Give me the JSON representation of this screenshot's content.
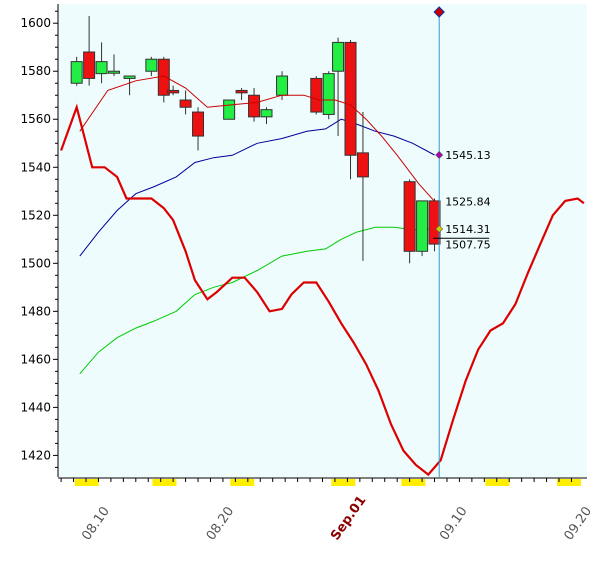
{
  "chart_data": {
    "type": "candlestick",
    "title": "",
    "xlabel": "",
    "ylabel": "",
    "ylim": [
      1411,
      1608
    ],
    "yticks": [
      1420,
      1440,
      1460,
      1480,
      1500,
      1520,
      1540,
      1560,
      1580,
      1600
    ],
    "x_ticks": [
      {
        "label": "08.10",
        "day": 2,
        "month_label": false
      },
      {
        "label": "08.20",
        "day": 10,
        "month_label": false
      },
      {
        "label": "Sep.01",
        "day": 18,
        "month_label": true
      },
      {
        "label": "09.10",
        "day": 25,
        "month_label": false
      },
      {
        "label": "09.20",
        "day": 33,
        "month_label": false
      }
    ],
    "colors": {
      "plot_bg": "#eefcfd",
      "bull": "#22ee44",
      "bear": "#ee1111",
      "oscillator": "#dd0000",
      "ma_short": "#cc0000",
      "ma_mid": "#000099",
      "ma_long": "#00cc00",
      "cursor": "#3399cc",
      "week_marks": "#ffee00"
    },
    "candles": [
      {
        "day": 1,
        "open": 1575,
        "high": 1586,
        "low": 1574,
        "close": 1584
      },
      {
        "day": 1.8,
        "open": 1588,
        "high": 1603,
        "low": 1574,
        "close": 1577
      },
      {
        "day": 2.6,
        "open": 1579,
        "high": 1592,
        "low": 1575,
        "close": 1584
      },
      {
        "day": 3.4,
        "open": 1580,
        "high": 1587,
        "low": 1578,
        "close": 1580
      },
      {
        "day": 4.4,
        "open": 1577,
        "high": 1578,
        "low": 1570,
        "close": 1578
      },
      {
        "day": 5.8,
        "open": 1580,
        "high": 1586,
        "low": 1578,
        "close": 1585
      },
      {
        "day": 6.6,
        "open": 1585,
        "high": 1586,
        "low": 1567,
        "close": 1570
      },
      {
        "day": 7.2,
        "open": 1572,
        "high": 1574,
        "low": 1570,
        "close": 1571
      },
      {
        "day": 8,
        "open": 1568,
        "high": 1572,
        "low": 1562,
        "close": 1565
      },
      {
        "day": 8.8,
        "open": 1563,
        "high": 1565,
        "low": 1547,
        "close": 1553
      },
      {
        "day": 10.8,
        "open": 1560,
        "high": 1568,
        "low": 1560,
        "close": 1568
      },
      {
        "day": 11.6,
        "open": 1572,
        "high": 1573,
        "low": 1568,
        "close": 1571
      },
      {
        "day": 12.4,
        "open": 1570,
        "high": 1573,
        "low": 1559,
        "close": 1561
      },
      {
        "day": 13.2,
        "open": 1561,
        "high": 1565,
        "low": 1558,
        "close": 1564
      },
      {
        "day": 14.2,
        "open": 1570,
        "high": 1580,
        "low": 1568,
        "close": 1578
      },
      {
        "day": 16.4,
        "open": 1577,
        "high": 1578,
        "low": 1562,
        "close": 1563
      },
      {
        "day": 17.2,
        "open": 1562,
        "high": 1580,
        "low": 1560,
        "close": 1579
      },
      {
        "day": 17.8,
        "open": 1580,
        "high": 1594,
        "low": 1553,
        "close": 1592
      },
      {
        "day": 18.6,
        "open": 1592,
        "high": 1593,
        "low": 1535,
        "close": 1545
      },
      {
        "day": 19.4,
        "open": 1546,
        "high": 1563,
        "low": 1501,
        "close": 1536
      },
      {
        "day": 22.4,
        "open": 1534,
        "high": 1535,
        "low": 1500,
        "close": 1505
      },
      {
        "day": 23.2,
        "open": 1505,
        "high": 1526,
        "low": 1503,
        "close": 1526
      },
      {
        "day": 24.0,
        "open": 1526,
        "high": 1527,
        "low": 1505,
        "close": 1508
      }
    ],
    "oscillator": {
      "x": [
        0,
        1,
        2,
        2.8,
        3.6,
        4.2,
        5,
        5.8,
        6.6,
        7.2,
        8,
        8.6,
        9.4,
        10,
        11,
        11.8,
        12.6,
        13.4,
        14.2,
        14.8,
        15.6,
        16.4,
        17.2,
        18,
        18.8,
        19.6,
        20.4,
        21.2,
        22,
        22.8,
        23.6,
        24.4,
        25.2,
        26,
        26.8,
        27.6,
        28.4,
        29.2,
        30,
        30.8,
        31.6,
        32.4,
        33.2,
        33.6
      ],
      "y": [
        1547,
        1565,
        1540,
        1540,
        1536,
        1527,
        1527,
        1527,
        1523,
        1518,
        1505,
        1493,
        1485,
        1488,
        1494,
        1494,
        1488,
        1480,
        1481,
        1487,
        1492,
        1492,
        1484,
        1475,
        1467,
        1458,
        1447,
        1433,
        1422,
        1416,
        1412,
        1418,
        1435,
        1451,
        1464,
        1472,
        1475,
        1483,
        1496,
        1508,
        1520,
        1526,
        1527,
        1525
      ]
    },
    "ma_short": {
      "x": [
        1.2,
        3,
        4.8,
        6.6,
        8,
        9.4,
        11,
        12.6,
        14.2,
        15.6,
        16.6,
        17.6,
        18.6,
        19.6,
        20.6,
        21.6,
        23,
        24
      ],
      "y": [
        1555,
        1572,
        1576,
        1578,
        1573,
        1565,
        1566,
        1567,
        1570,
        1570,
        1568,
        1568,
        1566,
        1560,
        1553,
        1545,
        1533,
        1525.84
      ]
    },
    "ma_mid": {
      "x": [
        1.2,
        2.4,
        3.6,
        4.8,
        6,
        7.4,
        8.6,
        9.8,
        11,
        12.6,
        14.2,
        15.8,
        17,
        18,
        19,
        20.2,
        21.4,
        22.6,
        24
      ],
      "y": [
        1503,
        1513,
        1522,
        1529,
        1532,
        1536,
        1542,
        1544,
        1545,
        1550,
        1552,
        1555,
        1556,
        1560,
        1558,
        1555,
        1553,
        1550,
        1545.13
      ]
    },
    "ma_long": {
      "x": [
        1.2,
        2.4,
        3.6,
        4.8,
        6,
        7.4,
        8.6,
        9.8,
        11,
        12.6,
        14.2,
        15.8,
        17,
        18,
        19,
        20.2,
        21.4,
        22.6,
        24
      ],
      "y": [
        1454,
        1463,
        1469,
        1473,
        1476,
        1480,
        1487,
        1490,
        1492,
        1497,
        1503,
        1505,
        1506,
        1510,
        1513,
        1515,
        1515,
        1514,
        1514.31
      ]
    },
    "cursor_day": 24.3,
    "annotations": [
      {
        "label": "1545.13",
        "value": 1545.13,
        "marker": true
      },
      {
        "label": "1525.84",
        "value": 1525.84,
        "marker": false
      },
      {
        "label": "1514.31",
        "value": 1514.31,
        "marker": true
      },
      {
        "label": "1507.75",
        "value": 1507.75,
        "marker": false,
        "underline": true
      }
    ],
    "week_marks": [
      1,
      6,
      11,
      17.5,
      22,
      27.4,
      32
    ]
  }
}
